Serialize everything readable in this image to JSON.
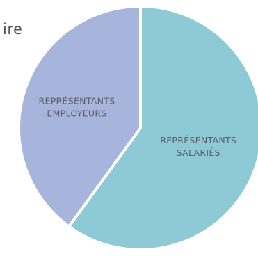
{
  "title_fragment": "ire",
  "chart_data": {
    "type": "pie",
    "slices": [
      {
        "label_lines": [
          "REPRÉSENTANTS",
          "SALARIÉS"
        ],
        "value": 0.6,
        "color": "#8ec9d6"
      },
      {
        "label_lines": [
          "REPRÉSENTANTS",
          "EMPLOYEURS"
        ],
        "value": 0.4,
        "color": "#a7b5dc"
      }
    ],
    "start_angle_deg": 0,
    "direction": "clockwise",
    "slice_separator_color": "#ffffff"
  }
}
